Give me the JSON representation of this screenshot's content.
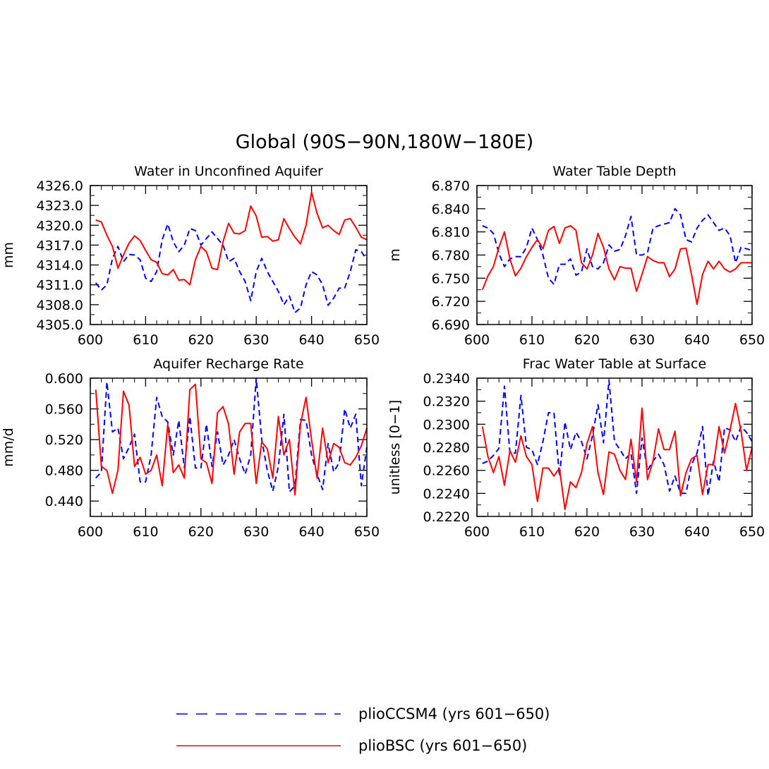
{
  "title": "Global (90S−90N,180W−180E)",
  "colors": {
    "series_1": "#0000ff",
    "series_2": "#ff0000"
  },
  "legend": [
    {
      "label": "plioCCSM4 (yrs 601−650)",
      "style": "dashed",
      "color": "#0000ff"
    },
    {
      "label": "plioBSC (yrs 601−650)",
      "style": "solid",
      "color": "#ff0000"
    }
  ],
  "chart_data": [
    {
      "type": "line",
      "title": "Water in Unconfined Aquifer",
      "xlabel": "",
      "ylabel": "mm",
      "xlim": [
        600,
        650
      ],
      "ylim": [
        4305,
        4326
      ],
      "x_ticks": [
        600,
        610,
        620,
        630,
        640,
        650
      ],
      "x_tick_labels": [
        "600",
        "610",
        "620",
        "630",
        "640",
        "650"
      ],
      "y_ticks": [
        4305,
        4308,
        4311,
        4314,
        4317,
        4320,
        4323,
        4326
      ],
      "y_tick_labels": [
        "4305.0",
        "4308.0",
        "4311.0",
        "4314.0",
        "4317.0",
        "4320.0",
        "4323.0",
        "4326.0"
      ],
      "x_start": 601,
      "series": [
        {
          "name": "plioCCSM4 (yrs 601−650)",
          "style": "dashed",
          "color": "#0000ff",
          "values": [
            4311.3,
            4310.2,
            4311.0,
            4315.0,
            4316.8,
            4314.5,
            4315.6,
            4315.5,
            4314.8,
            4312.0,
            4311.5,
            4313.0,
            4317.8,
            4320.2,
            4317.5,
            4316.0,
            4317.0,
            4319.5,
            4319.2,
            4317.0,
            4318.0,
            4319.0,
            4318.0,
            4317.0,
            4314.5,
            4315.0,
            4313.0,
            4311.5,
            4308.6,
            4313.0,
            4315.0,
            4313.0,
            4311.5,
            4310.0,
            4308.0,
            4309.3,
            4306.8,
            4307.5,
            4311.0,
            4313.0,
            4312.5,
            4311.0,
            4307.9,
            4309.0,
            4310.5,
            4310.5,
            4313.0,
            4316.3,
            4316.0,
            4314.8
          ]
        },
        {
          "name": "plioBSC (yrs 601−650)",
          "style": "solid",
          "color": "#ff0000",
          "values": [
            4320.8,
            4320.5,
            4318.5,
            4316.8,
            4313.5,
            4315.5,
            4317.3,
            4318.4,
            4317.7,
            4316.2,
            4314.8,
            4314.4,
            4312.7,
            4312.5,
            4313.3,
            4311.7,
            4311.8,
            4311.0,
            4314.8,
            4316.8,
            4316.0,
            4313.5,
            4313.3,
            4317.5,
            4320.3,
            4318.8,
            4318.7,
            4319.2,
            4322.9,
            4321.4,
            4318.2,
            4318.3,
            4317.6,
            4317.8,
            4321.0,
            4319.5,
            4318.2,
            4317.2,
            4320.0,
            4325.0,
            4321.8,
            4319.6,
            4320.0,
            4319.2,
            4318.6,
            4320.8,
            4321.0,
            4319.7,
            4318.2,
            4317.8
          ]
        }
      ]
    },
    {
      "type": "line",
      "title": "Water Table Depth",
      "xlabel": "",
      "ylabel": "m",
      "xlim": [
        600,
        650
      ],
      "ylim": [
        6.69,
        6.87
      ],
      "x_ticks": [
        600,
        610,
        620,
        630,
        640,
        650
      ],
      "x_tick_labels": [
        "600",
        "610",
        "620",
        "630",
        "640",
        "650"
      ],
      "y_ticks": [
        6.69,
        6.72,
        6.75,
        6.78,
        6.81,
        6.84,
        6.87
      ],
      "y_tick_labels": [
        "6.690",
        "6.720",
        "6.750",
        "6.780",
        "6.810",
        "6.840",
        "6.870"
      ],
      "x_start": 601,
      "series": [
        {
          "name": "plioCCSM4 (yrs 601−650)",
          "style": "dashed",
          "color": "#0000ff",
          "values": [
            6.818,
            6.815,
            6.808,
            6.782,
            6.765,
            6.775,
            6.778,
            6.778,
            6.79,
            6.815,
            6.8,
            6.78,
            6.75,
            6.742,
            6.768,
            6.768,
            6.775,
            6.754,
            6.758,
            6.788,
            6.765,
            6.762,
            6.77,
            6.793,
            6.785,
            6.787,
            6.805,
            6.83,
            6.78,
            6.78,
            6.783,
            6.815,
            6.818,
            6.82,
            6.822,
            6.84,
            6.832,
            6.8,
            6.797,
            6.815,
            6.825,
            6.832,
            6.822,
            6.812,
            6.815,
            6.805,
            6.77,
            6.79,
            6.788,
            6.786
          ]
        },
        {
          "name": "plioBSC (yrs 601−650)",
          "style": "solid",
          "color": "#ff0000",
          "values": [
            6.735,
            6.753,
            6.765,
            6.79,
            6.81,
            6.775,
            6.753,
            6.763,
            6.778,
            6.79,
            6.8,
            6.788,
            6.812,
            6.817,
            6.795,
            6.815,
            6.818,
            6.812,
            6.77,
            6.762,
            6.78,
            6.808,
            6.79,
            6.762,
            6.748,
            6.765,
            6.763,
            6.763,
            6.733,
            6.755,
            6.778,
            6.773,
            6.77,
            6.77,
            6.752,
            6.762,
            6.788,
            6.789,
            6.755,
            6.716,
            6.755,
            6.772,
            6.762,
            6.772,
            6.762,
            6.758,
            6.762,
            6.77,
            6.77,
            6.77
          ]
        }
      ]
    },
    {
      "type": "line",
      "title": "Aquifer Recharge Rate",
      "xlabel": "",
      "ylabel": "mm/d",
      "xlim": [
        600,
        650
      ],
      "ylim": [
        0.42,
        0.6
      ],
      "x_ticks": [
        600,
        610,
        620,
        630,
        640,
        650
      ],
      "x_tick_labels": [
        "600",
        "610",
        "620",
        "630",
        "640",
        "650"
      ],
      "y_ticks": [
        0.44,
        0.48,
        0.52,
        0.56,
        0.6
      ],
      "y_tick_labels": [
        "0.440",
        "0.480",
        "0.520",
        "0.560",
        "0.600"
      ],
      "x_start": 601,
      "series": [
        {
          "name": "plioCCSM4 (yrs 601−650)",
          "style": "dashed",
          "color": "#0000ff",
          "values": [
            0.47,
            0.478,
            0.595,
            0.53,
            0.535,
            0.495,
            0.51,
            0.527,
            0.465,
            0.465,
            0.5,
            0.575,
            0.55,
            0.543,
            0.5,
            0.545,
            0.483,
            0.55,
            0.483,
            0.483,
            0.54,
            0.485,
            0.53,
            0.487,
            0.5,
            0.52,
            0.495,
            0.475,
            0.5,
            0.6,
            0.52,
            0.48,
            0.453,
            0.485,
            0.553,
            0.452,
            0.46,
            0.546,
            0.545,
            0.5,
            0.475,
            0.455,
            0.515,
            0.478,
            0.49,
            0.56,
            0.535,
            0.553,
            0.46,
            0.51
          ]
        },
        {
          "name": "plioBSC (yrs 601−650)",
          "style": "solid",
          "color": "#ff0000",
          "values": [
            0.585,
            0.485,
            0.48,
            0.45,
            0.48,
            0.583,
            0.565,
            0.485,
            0.497,
            0.475,
            0.48,
            0.5,
            0.46,
            0.54,
            0.477,
            0.487,
            0.47,
            0.585,
            0.592,
            0.495,
            0.49,
            0.463,
            0.555,
            0.563,
            0.54,
            0.475,
            0.53,
            0.541,
            0.541,
            0.463,
            0.517,
            0.508,
            0.47,
            0.55,
            0.5,
            0.52,
            0.448,
            0.54,
            0.575,
            0.52,
            0.47,
            0.535,
            0.49,
            0.515,
            0.51,
            0.49,
            0.487,
            0.497,
            0.512,
            0.535
          ]
        }
      ]
    },
    {
      "type": "line",
      "title": "Frac Water Table at Surface",
      "xlabel": "",
      "ylabel": "unitless [0−1]",
      "xlim": [
        600,
        650
      ],
      "ylim": [
        0.222,
        0.234
      ],
      "x_ticks": [
        600,
        610,
        620,
        630,
        640,
        650
      ],
      "x_tick_labels": [
        "600",
        "610",
        "620",
        "630",
        "640",
        "650"
      ],
      "y_ticks": [
        0.222,
        0.224,
        0.226,
        0.228,
        0.23,
        0.232,
        0.234
      ],
      "y_tick_labels": [
        "0.2220",
        "0.2240",
        "0.2260",
        "0.2280",
        "0.2300",
        "0.2320",
        "0.2340"
      ],
      "x_start": 601,
      "series": [
        {
          "name": "plioCCSM4 (yrs 601−650)",
          "style": "dashed",
          "color": "#0000ff",
          "values": [
            0.2266,
            0.2268,
            0.2273,
            0.2279,
            0.2333,
            0.2275,
            0.2275,
            0.2325,
            0.228,
            0.2278,
            0.2265,
            0.2285,
            0.231,
            0.231,
            0.2255,
            0.2302,
            0.2278,
            0.2293,
            0.2285,
            0.227,
            0.229,
            0.2317,
            0.2284,
            0.2338,
            0.2285,
            0.2278,
            0.227,
            0.2275,
            0.224,
            0.2288,
            0.226,
            0.2268,
            0.2274,
            0.2265,
            0.2242,
            0.2255,
            0.224,
            0.224,
            0.2265,
            0.2275,
            0.2298,
            0.2238,
            0.2268,
            0.225,
            0.2297,
            0.2295,
            0.2285,
            0.2298,
            0.2293,
            0.2285
          ]
        },
        {
          "name": "plioBSC (yrs 601−650)",
          "style": "solid",
          "color": "#ff0000",
          "values": [
            0.2298,
            0.2272,
            0.2258,
            0.2272,
            0.2247,
            0.2277,
            0.2267,
            0.229,
            0.2272,
            0.2265,
            0.2233,
            0.2262,
            0.2262,
            0.2255,
            0.2262,
            0.2226,
            0.225,
            0.2245,
            0.2258,
            0.2283,
            0.2298,
            0.2258,
            0.2239,
            0.2276,
            0.2274,
            0.226,
            0.2252,
            0.2287,
            0.225,
            0.2314,
            0.2252,
            0.2268,
            0.2296,
            0.2278,
            0.2278,
            0.2294,
            0.2238,
            0.2258,
            0.227,
            0.2273,
            0.2239,
            0.2265,
            0.2265,
            0.2298,
            0.2275,
            0.2295,
            0.2318,
            0.2294,
            0.226,
            0.228
          ]
        }
      ]
    }
  ]
}
